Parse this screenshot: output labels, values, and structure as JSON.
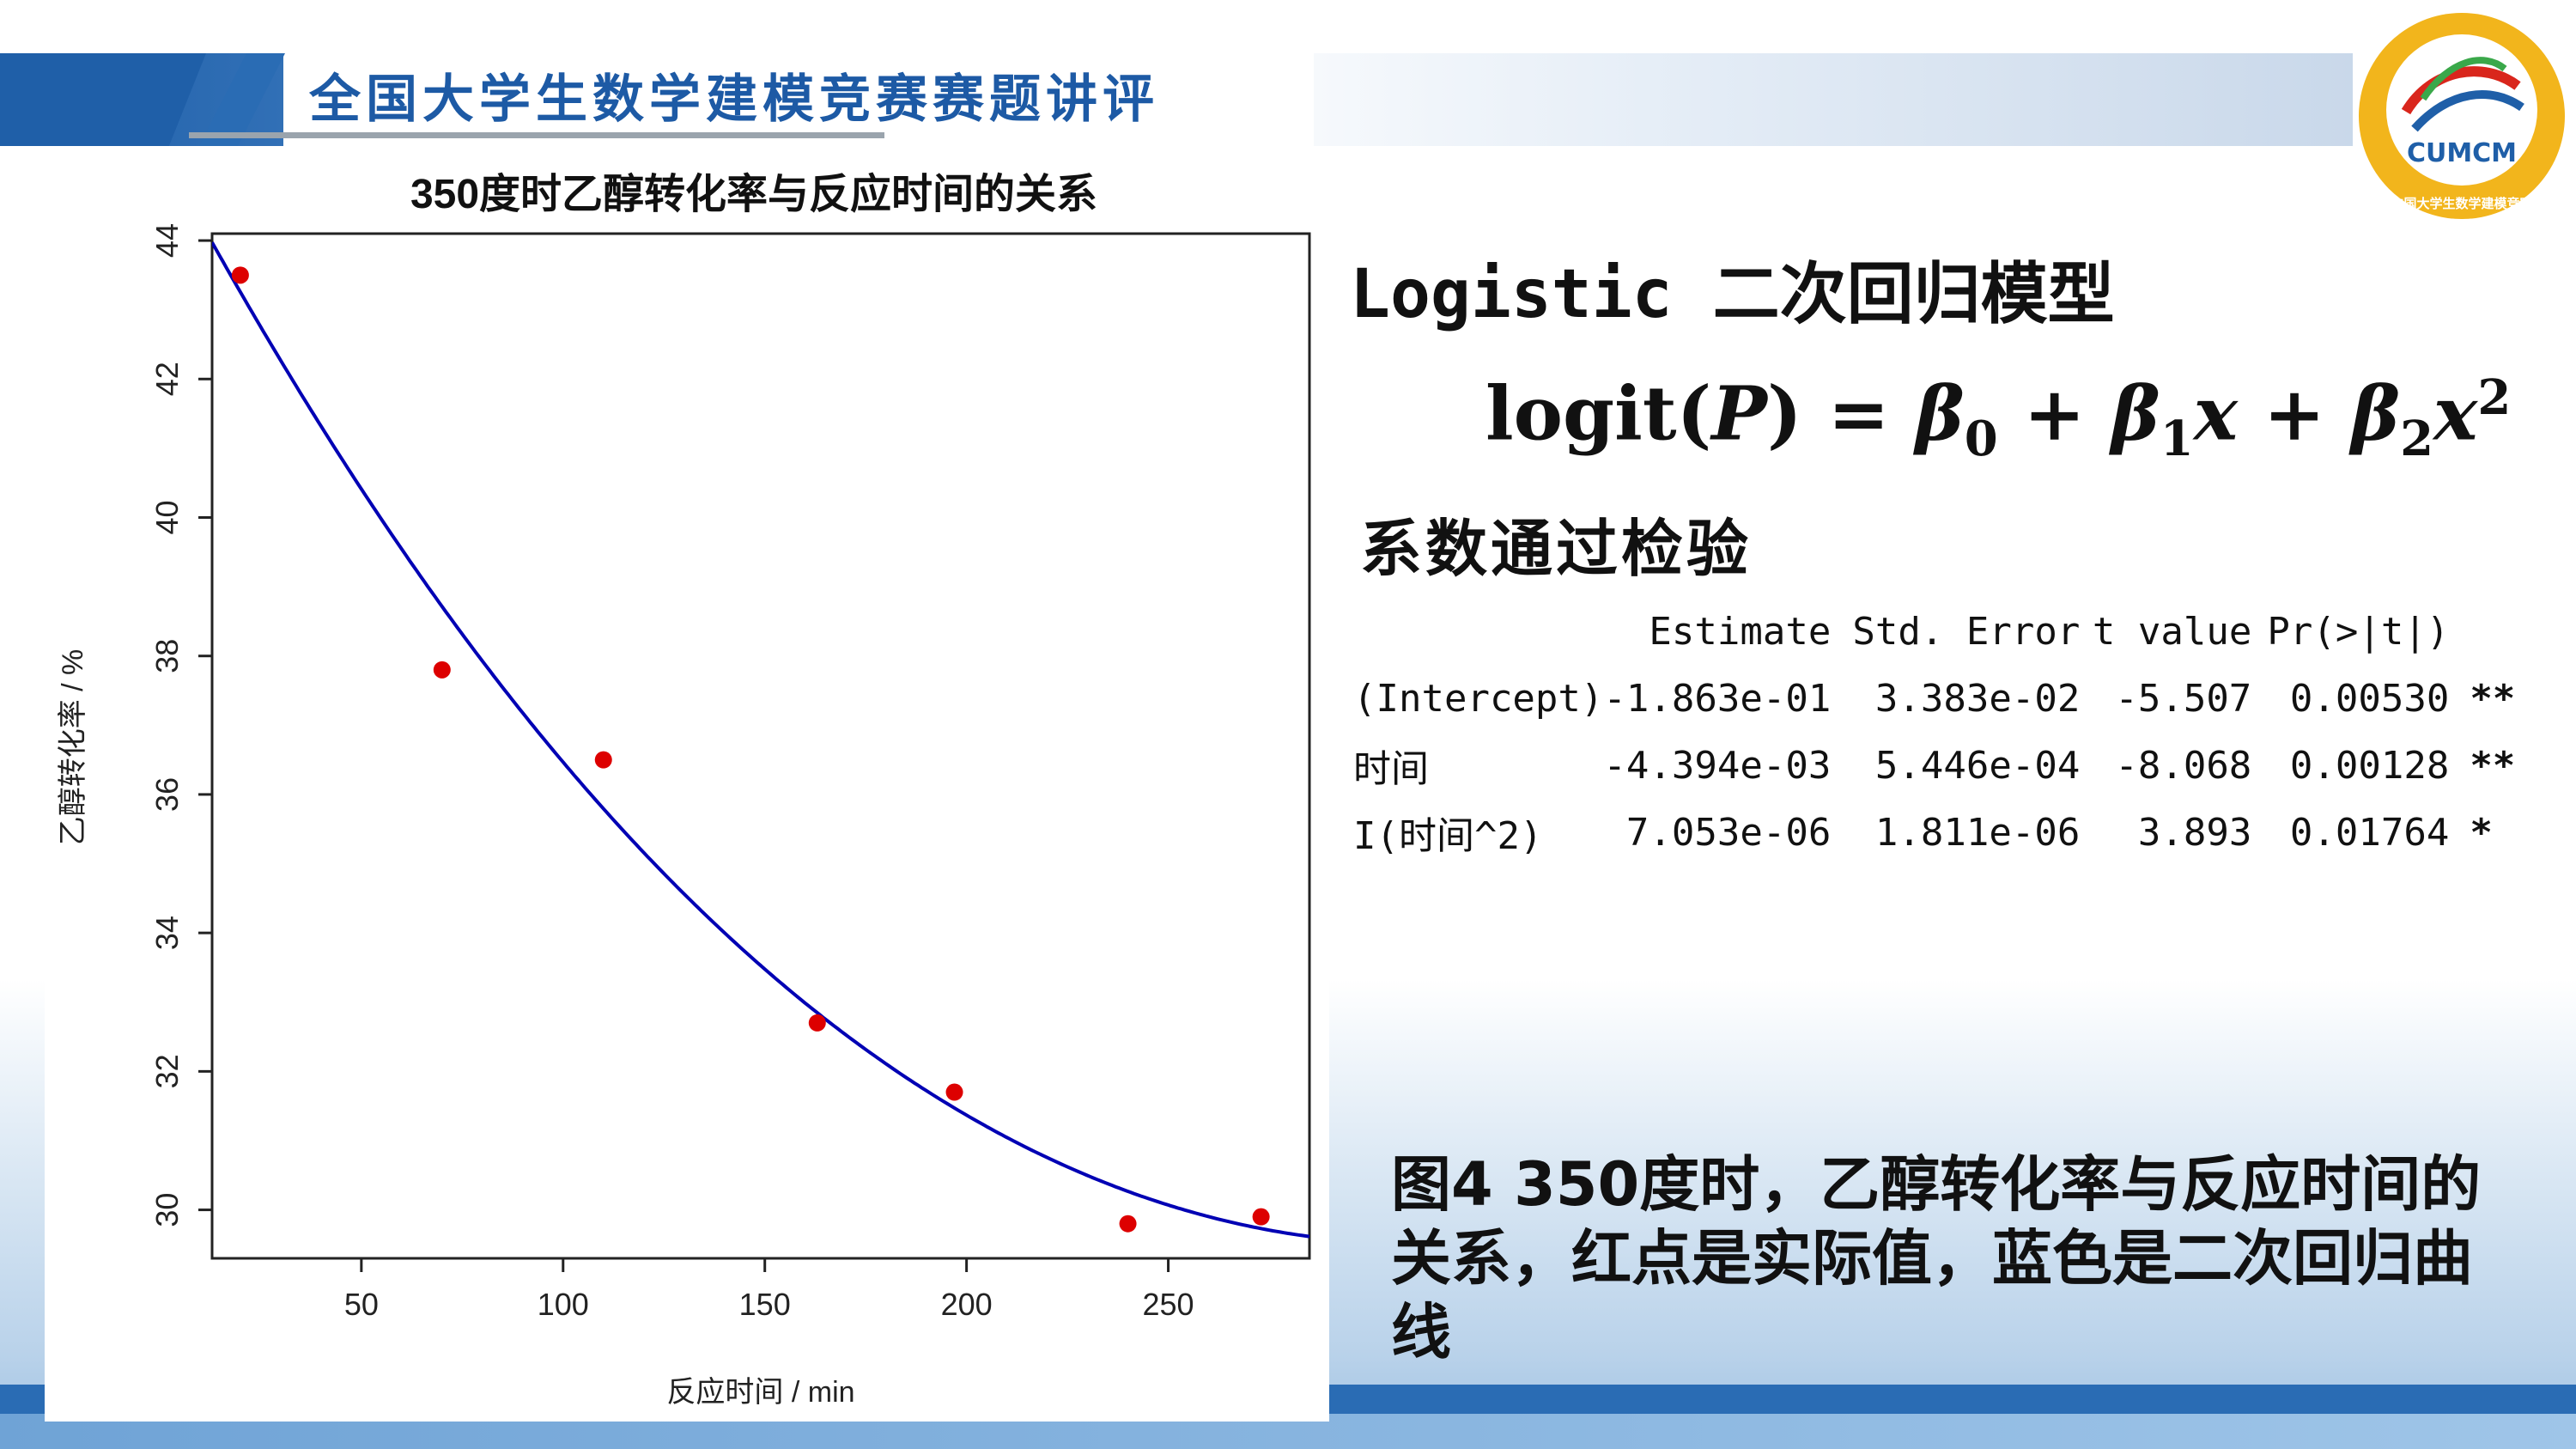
{
  "header": {
    "title": "全国大学生数学建模竞赛赛题讲评",
    "logo_text": "CUMCM",
    "logo_ring_text": "中国大学生数学建模竞赛"
  },
  "colors": {
    "header_blue": "#1f5fa8",
    "curve_blue": "#0000b4",
    "point_red": "#dd0000"
  },
  "chart_data": {
    "type": "scatter",
    "title": "350度时乙醇转化率与反应时间的关系",
    "xlabel": "反应时间 / min",
    "ylabel": "乙醇转化率 / %",
    "xlim": [
      13,
      285
    ],
    "ylim": [
      29.3,
      44.1
    ],
    "xticks": [
      50,
      100,
      150,
      200,
      250
    ],
    "yticks": [
      30,
      32,
      34,
      36,
      38,
      40,
      42,
      44
    ],
    "grid": false,
    "points": {
      "name": "实际值",
      "color": "#dd0000",
      "x": [
        20,
        70,
        110,
        163,
        197,
        240,
        273
      ],
      "y": [
        43.5,
        37.8,
        36.5,
        32.7,
        31.7,
        29.8,
        29.9
      ]
    },
    "curve": {
      "name": "二次回归曲线",
      "color": "#0000b4",
      "model": "logit(P) = b0 + b1*x + b2*x^2",
      "coefficients": {
        "b0": -0.1863,
        "b1": -0.004394,
        "b2": 7.053e-06
      }
    }
  },
  "model": {
    "title": "Logistic 二次回归模型",
    "formula_head": "logit",
    "formula_var": "P",
    "coef_note": "系数通过检验"
  },
  "regression_table": {
    "headers": [
      "",
      "Estimate",
      "Std. Error",
      "t value",
      "Pr(>|t|)",
      ""
    ],
    "rows": [
      {
        "name": "(Intercept)",
        "estimate": "-1.863e-01",
        "std_error": "3.383e-02",
        "t_value": "-5.507",
        "p_value": "0.00530",
        "sig": "**"
      },
      {
        "name": "时间",
        "estimate": "-4.394e-03",
        "std_error": "5.446e-04",
        "t_value": "-8.068",
        "p_value": "0.00128",
        "sig": "**"
      },
      {
        "name": "I(时间^2)",
        "estimate": "7.053e-06",
        "std_error": "1.811e-06",
        "t_value": "3.893",
        "p_value": "0.01764",
        "sig": "*"
      }
    ]
  },
  "caption": "图4 350度时，乙醇转化率与反应时间的关系，红点是实际值，蓝色是二次回归曲线"
}
